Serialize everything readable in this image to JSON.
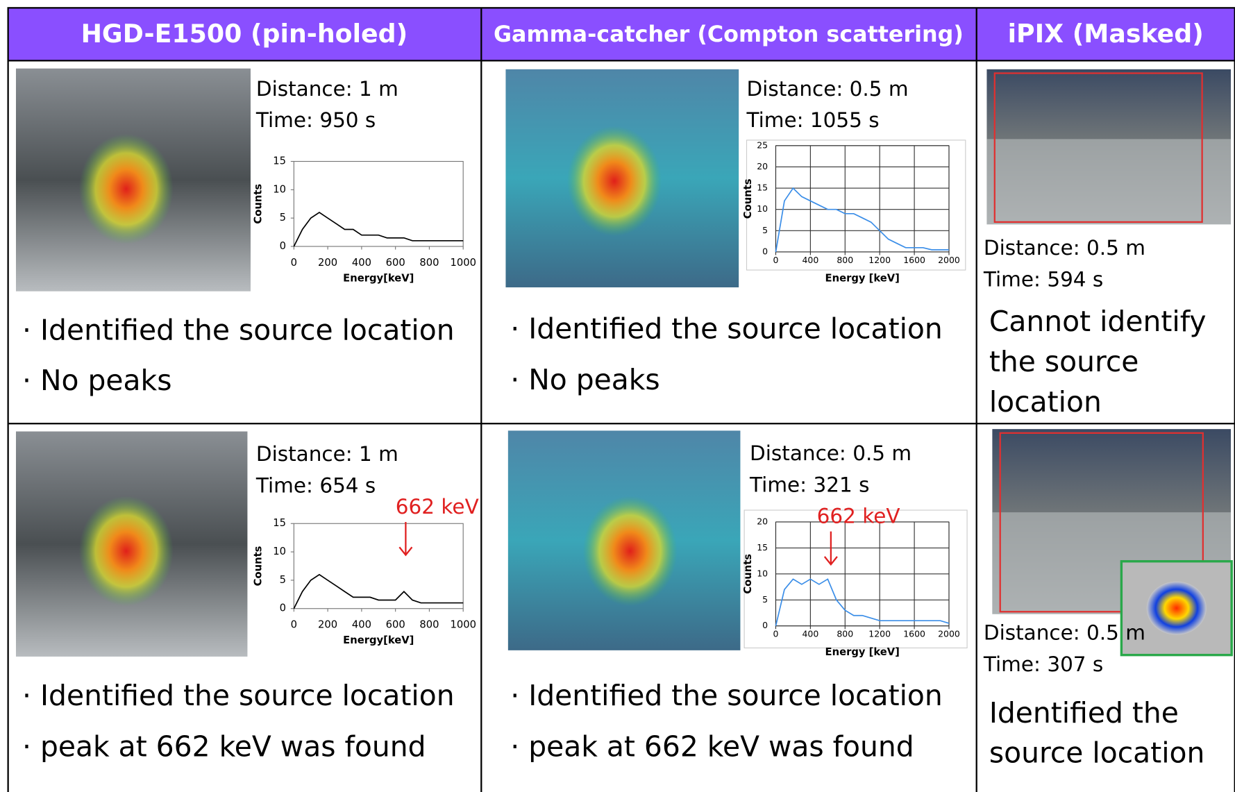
{
  "header": {
    "columns": [
      "HGD-E1500 (pin-holed)",
      "Gamma-catcher (Compton scattering)",
      "iPIX (Masked)"
    ]
  },
  "rows": [
    [
      {
        "distance": "Distance: 1 m",
        "time": "Time: 950 s",
        "spectrum": {
          "ylabel": "Counts",
          "xlabel": "Energy[keV]",
          "color": "#000000",
          "grid": false,
          "xlim": [
            0,
            1000
          ],
          "ylim": [
            0,
            15
          ],
          "xticks": [
            0,
            200,
            400,
            600,
            800,
            1000
          ],
          "yticks": [
            0,
            5,
            10,
            15
          ],
          "x": [
            0,
            50,
            100,
            150,
            200,
            250,
            300,
            350,
            400,
            450,
            500,
            550,
            600,
            650,
            700,
            750,
            800,
            850,
            900,
            950,
            1000
          ],
          "values": [
            0,
            3,
            5,
            6,
            5,
            4,
            3,
            3,
            2,
            2,
            2,
            1.5,
            1.5,
            1.5,
            1,
            1,
            1,
            1,
            1,
            1,
            1
          ]
        },
        "notes": [
          "· Identified the source location",
          "· No peaks"
        ]
      },
      {
        "distance": "Distance: 0.5 m",
        "time": "Time: 1055 s",
        "spectrum": {
          "ylabel": "Counts",
          "xlabel": "Energy [keV]",
          "color": "#3b8ee8",
          "grid": true,
          "xlim": [
            0,
            2000
          ],
          "ylim": [
            0,
            25
          ],
          "xticks": [
            0,
            400,
            800,
            1200,
            1600,
            2000
          ],
          "yticks": [
            0,
            5,
            10,
            15,
            20,
            25
          ],
          "x": [
            0,
            100,
            200,
            300,
            400,
            500,
            600,
            700,
            800,
            900,
            1000,
            1100,
            1200,
            1300,
            1400,
            1500,
            1600,
            1700,
            1800,
            1900,
            2000
          ],
          "values": [
            0,
            12,
            15,
            13,
            12,
            11,
            10,
            10,
            9,
            9,
            8,
            7,
            5,
            3,
            2,
            1,
            1,
            1,
            0.5,
            0.5,
            0.5
          ]
        },
        "notes": [
          "· Identified the source location",
          "· No peaks"
        ]
      },
      {
        "distance": "Distance: 0.5 m",
        "time": "Time: 594 s",
        "notes": [
          "Cannot identify",
          "the source",
          "location"
        ]
      }
    ],
    [
      {
        "distance": "Distance: 1 m",
        "time": "Time: 654 s",
        "spectrum": {
          "ylabel": "Counts",
          "xlabel": "Energy[keV]",
          "color": "#000000",
          "grid": false,
          "peak_label": "662 keV",
          "xlim": [
            0,
            1000
          ],
          "ylim": [
            0,
            15
          ],
          "xticks": [
            0,
            200,
            400,
            600,
            800,
            1000
          ],
          "yticks": [
            0,
            5,
            10,
            15
          ],
          "x": [
            0,
            50,
            100,
            150,
            200,
            250,
            300,
            350,
            400,
            450,
            500,
            550,
            600,
            650,
            700,
            750,
            800,
            850,
            900,
            950,
            1000
          ],
          "values": [
            0,
            3,
            5,
            6,
            5,
            4,
            3,
            2,
            2,
            2,
            1.5,
            1.5,
            1.5,
            3,
            1.5,
            1,
            1,
            1,
            1,
            1,
            1
          ]
        },
        "notes": [
          "· Identified the source location",
          "· peak at 662 keV was found"
        ]
      },
      {
        "distance": "Distance: 0.5 m",
        "time": "Time: 321 s",
        "spectrum": {
          "ylabel": "Counts",
          "xlabel": "Energy [keV]",
          "color": "#3b8ee8",
          "grid": true,
          "peak_label": "662 keV",
          "xlim": [
            0,
            2000
          ],
          "ylim": [
            0,
            20
          ],
          "xticks": [
            0,
            400,
            800,
            1200,
            1600,
            2000
          ],
          "yticks": [
            0,
            5,
            10,
            15,
            20
          ],
          "x": [
            0,
            100,
            200,
            300,
            400,
            500,
            600,
            700,
            800,
            900,
            1000,
            1100,
            1200,
            1300,
            1400,
            1500,
            1600,
            1700,
            1800,
            1900,
            2000
          ],
          "values": [
            0,
            7,
            9,
            8,
            9,
            8,
            9,
            5,
            3,
            2,
            2,
            1.5,
            1,
            1,
            1,
            1,
            1,
            1,
            1,
            1,
            0.5
          ]
        },
        "notes": [
          "· Identified the source location",
          "· peak at 662 keV was found"
        ]
      },
      {
        "distance": "Distance: 0.5 m",
        "time": "Time: 307 s",
        "notes": [
          "Identified the",
          "source location"
        ]
      }
    ]
  ]
}
